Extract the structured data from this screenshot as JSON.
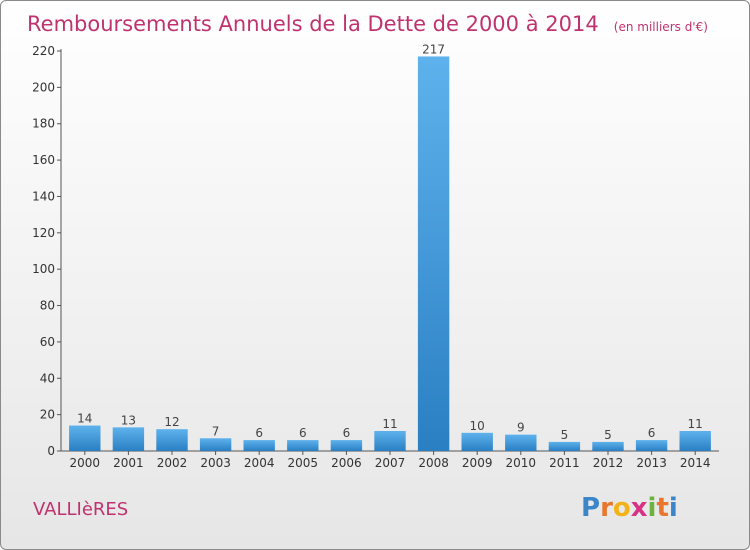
{
  "chart_data": {
    "type": "bar",
    "title": "Remboursements Annuels de la Dette de 2000 à 2014",
    "subtitle": "(en milliers d'€)",
    "categories": [
      "2000",
      "2001",
      "2002",
      "2003",
      "2004",
      "2005",
      "2006",
      "2007",
      "2008",
      "2009",
      "2010",
      "2011",
      "2012",
      "2013",
      "2014"
    ],
    "values": [
      14,
      13,
      12,
      7,
      6,
      6,
      6,
      11,
      217,
      10,
      9,
      5,
      5,
      6,
      11
    ],
    "ylim": [
      0,
      220
    ],
    "yticks": [
      0,
      20,
      40,
      60,
      80,
      100,
      120,
      140,
      160,
      180,
      200,
      220
    ],
    "xlabel": "",
    "ylabel": "",
    "grid": false,
    "bar_color": "#3d96dc"
  },
  "commune": "VALLIèRES",
  "logo": {
    "letters": [
      "P",
      "r",
      "o",
      "x",
      "i",
      "t",
      "i"
    ],
    "colors": [
      "#3b86c8",
      "#e8762d",
      "#f2b31a",
      "#d63384",
      "#6bb33e",
      "#e8762d",
      "#3b86c8"
    ]
  }
}
